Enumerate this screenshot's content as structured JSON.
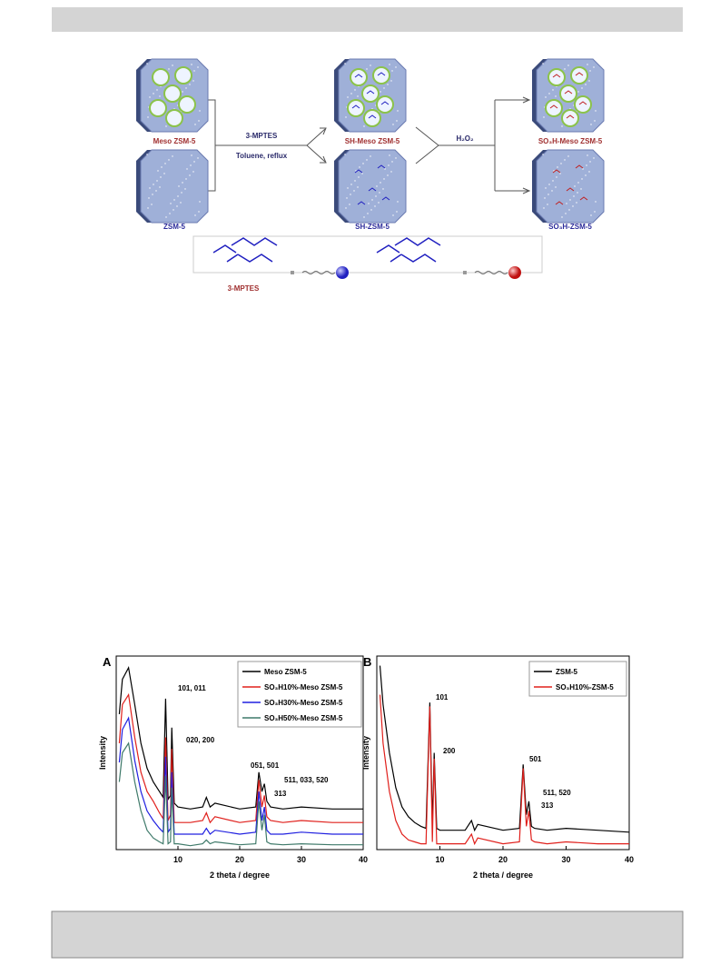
{
  "scheme": {
    "meso_zsm5": "Meso ZSM-5",
    "zsm5": "ZSM-5",
    "reagent": "3-MPTES",
    "conditions": "Toluene, reflux",
    "sh_meso": "SH-Meso ZSM-5",
    "sh_zsm5": "SH-ZSM-5",
    "oxidant": "H₂O₂",
    "so3h_meso": "SO₃H-Meso ZSM-5",
    "so3h_zsm5": "SO₃H-ZSM-5",
    "legend_label": "3-MPTES",
    "equals": "="
  },
  "chart_data": [
    {
      "type": "line",
      "panel": "A",
      "xlabel": "2 theta / degree",
      "ylabel": "Intensity",
      "xlim": [
        0,
        40
      ],
      "ylim": [
        0,
        100
      ],
      "xticks": [
        10,
        20,
        30,
        40
      ],
      "legend": "upper right",
      "x": [
        0.5,
        1,
        2,
        3,
        4,
        5,
        6,
        7,
        7.6,
        8,
        8.4,
        8.8,
        9,
        9.4,
        10,
        12,
        14,
        14.6,
        15.2,
        16,
        20,
        22.6,
        23.1,
        23.6,
        24,
        24.4,
        25,
        27,
        30,
        35,
        40
      ],
      "series": [
        {
          "name": "Meso ZSM-5",
          "color": "#000000",
          "values": [
            70,
            88,
            94,
            75,
            55,
            42,
            35,
            30,
            27,
            78,
            26,
            28,
            63,
            24,
            22,
            21,
            22,
            27,
            22,
            24,
            21,
            22,
            40,
            30,
            34,
            25,
            22,
            21,
            22,
            21,
            21
          ]
        },
        {
          "name": "SO₃H10%-Meso ZSM-5",
          "color": "#e0201c",
          "values": [
            55,
            75,
            80,
            58,
            40,
            30,
            25,
            19,
            16,
            58,
            15,
            18,
            52,
            14,
            14,
            14,
            15,
            19,
            14,
            17,
            14,
            15,
            36,
            22,
            28,
            17,
            15,
            14,
            15,
            14,
            14
          ]
        },
        {
          "name": "SO₃H30%-Meso ZSM-5",
          "color": "#2020e0",
          "values": [
            45,
            62,
            68,
            46,
            30,
            20,
            15,
            11,
            9,
            48,
            9,
            11,
            40,
            8,
            8,
            8,
            8,
            11,
            8,
            10,
            8,
            9,
            30,
            15,
            22,
            10,
            8,
            8,
            9,
            8,
            8
          ]
        },
        {
          "name": "SO₃H50%-Meso ZSM-5",
          "color": "#3f7a6a",
          "values": [
            35,
            50,
            55,
            35,
            20,
            10,
            6,
            4,
            3,
            38,
            3,
            4,
            32,
            3,
            3,
            2,
            3,
            5,
            3,
            4,
            2.5,
            3,
            25,
            10,
            18,
            4,
            3,
            2.5,
            3,
            2.5,
            2.5
          ]
        }
      ],
      "annotations": [
        "101, 011",
        "020, 200",
        "051, 501",
        "511, 033, 520",
        "313"
      ]
    },
    {
      "type": "line",
      "panel": "B",
      "xlabel": "2 theta / degree",
      "ylabel": "Intensity",
      "xlim": [
        0,
        40
      ],
      "ylim": [
        0,
        100
      ],
      "xticks": [
        10,
        20,
        30,
        40
      ],
      "legend": "upper right",
      "x": [
        0.5,
        1,
        2,
        3,
        4,
        5,
        6,
        7,
        7.8,
        8.4,
        8.8,
        9.1,
        9.5,
        10,
        12,
        14,
        15,
        15.5,
        16,
        20,
        22.6,
        23.2,
        23.7,
        24.1,
        24.5,
        25,
        27,
        30,
        35,
        40
      ],
      "series": [
        {
          "name": "ZSM-5",
          "color": "#000000",
          "values": [
            95,
            75,
            50,
            32,
            22,
            17,
            14,
            12,
            11,
            76,
            13,
            50,
            11,
            10,
            10,
            10,
            15,
            10,
            13,
            10,
            11,
            44,
            18,
            25,
            12,
            11,
            10,
            11,
            10,
            9
          ]
        },
        {
          "name": "SO₃H10%-ZSM-5",
          "color": "#e0201c",
          "values": [
            80,
            55,
            30,
            15,
            8,
            5,
            4,
            3,
            3,
            74,
            4,
            47,
            3,
            3,
            3,
            3,
            8,
            3,
            6,
            3,
            4,
            42,
            12,
            20,
            5,
            4,
            3,
            4,
            3,
            3
          ]
        }
      ],
      "annotations": [
        "101",
        "200",
        "501",
        "511, 520",
        "313"
      ]
    }
  ]
}
